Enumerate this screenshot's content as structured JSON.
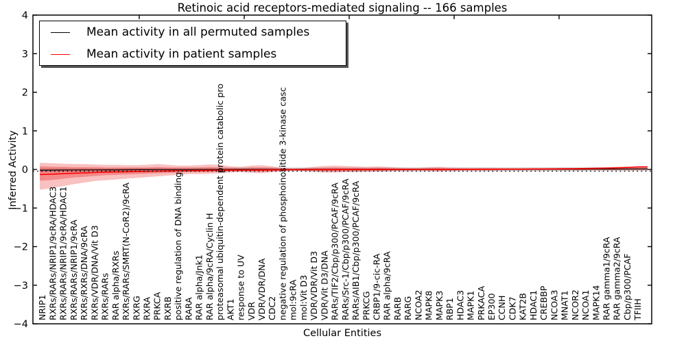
{
  "title": "Retinoic acid receptors-mediated signaling -- 166 samples",
  "legend": {
    "items": [
      {
        "label": "Mean activity in all permuted samples",
        "color": "#000000"
      },
      {
        "label": "Mean activity in patient samples",
        "color": "#ff0000"
      }
    ]
  },
  "axes": {
    "x_label": "Cellular Entities",
    "y_label": "Inferred Activity",
    "y_tick_labels": [
      "4",
      "3",
      "2",
      "1",
      "0",
      "−1",
      "−2",
      "−3",
      "−4"
    ],
    "y_tick_values": [
      4,
      3,
      2,
      1,
      0,
      -1,
      -2,
      -3,
      -4
    ]
  },
  "colors": {
    "permuted_line": "#000000",
    "patient_line": "#ff0000",
    "band_outer": "rgba(235,50,50,0.30)",
    "band_inner": "rgba(235,50,50,0.38)",
    "permuted_band": "rgba(120,120,120,0.35)",
    "zero_line": "#000000",
    "spine": "#000000"
  },
  "chart_data": {
    "type": "line",
    "title": "Retinoic acid receptors-mediated signaling -- 166 samples",
    "xlabel": "Cellular Entities",
    "ylabel": "Inferred Activity",
    "ylim": [
      -4,
      4
    ],
    "grid": false,
    "legend_position": "upper left",
    "categories": [
      "NRIP1",
      "RXRs/RARs/NRIP1/9cRA/HDAC3",
      "RXRs/RARs/NRIP1/9cRA/HDAC1",
      "RXRs/RARs/NRIP1/9cRA",
      "RXRs/RXRs/DNA/9cRA",
      "RXRs/VDR/DNA/Vit D3",
      "RXRs/RARs",
      "RAR alpha/RXRs",
      "RXRs/RARs/SMRT(N-CoR2)/9cRA",
      "RXRG",
      "RXRA",
      "PRKCA",
      "RXRB",
      "positive regulation of DNA binding",
      "RARA",
      "RAR alpha/Jnk1",
      "RAR alpha/9cRA/Cyclin H",
      "proteasomal ubiquitin-dependent protein catabolic pro",
      "AKT1",
      "response to UV",
      "VDR",
      "VDR/VDR/DNA",
      "CDC2",
      "negative regulation of phosphoinositide 3-kinase casc",
      "mol:9cRA",
      "mol:Vit D3",
      "VDR/VDR/Vit D3",
      "VDR/Vit D3/DNA",
      "RARs/TIF2/Cbp/p300/PCAF/9cRA",
      "RARs/Src-1/Cbp/p300/PCAF/9cRA",
      "RARs/AIB1/Cbp/p300/PCAF/9cRA",
      "PRKCG",
      "CRBP1/9-cic-RA",
      "RAR alpha/9cRA",
      "RARB",
      "RARG",
      "NCOA2",
      "MAPK8",
      "MAPK3",
      "RBP1",
      "HDAC3",
      "MAPK1",
      "PRKACA",
      "EP300",
      "CCNH",
      "CDK7",
      "KAT2B",
      "HDAC1",
      "CREBBP",
      "NCOA3",
      "MNAT1",
      "NCOR2",
      "NCOA1",
      "MAPK14",
      "RAR gamma1/9cRA",
      "RAR gamma2/9cRA",
      "Cbp/p300/PCAF",
      "TFIIH"
    ],
    "series": [
      {
        "name": "Mean activity in all permuted samples",
        "values": [
          -0.02,
          -0.018,
          -0.016,
          -0.015,
          -0.013,
          -0.012,
          -0.011,
          -0.01,
          -0.009,
          -0.008,
          -0.007,
          -0.006,
          -0.006,
          -0.005,
          -0.005,
          -0.004,
          -0.004,
          -0.003,
          -0.003,
          -0.002,
          -0.002,
          -0.002,
          -0.001,
          -0.001,
          -0.001,
          0,
          0,
          0,
          0,
          0,
          0,
          0,
          0.001,
          0.001,
          0.001,
          0.001,
          0.002,
          0.002,
          0.002,
          0.002,
          0.003,
          0.003,
          0.003,
          0.004,
          0.004,
          0.004,
          0.005,
          0.005,
          0.006,
          0.006,
          0.007,
          0.008,
          0.009,
          0.01,
          0.011,
          0.012,
          0.013,
          0.015
        ]
      },
      {
        "name": "Mean activity in patient samples",
        "values": [
          -0.13,
          -0.12,
          -0.11,
          -0.1,
          -0.09,
          -0.08,
          -0.07,
          -0.065,
          -0.06,
          -0.055,
          -0.05,
          -0.045,
          -0.04,
          -0.035,
          -0.03,
          -0.028,
          -0.025,
          -0.022,
          -0.02,
          -0.018,
          -0.016,
          -0.015,
          -0.013,
          -0.01,
          -0.008,
          -0.007,
          -0.006,
          -0.005,
          -0.005,
          -0.004,
          -0.004,
          -0.003,
          -0.003,
          -0.002,
          -0.002,
          -0.001,
          0,
          0,
          0.001,
          0.002,
          0.003,
          0.004,
          0.005,
          0.006,
          0.007,
          0.008,
          0.009,
          0.01,
          0.012,
          0.014,
          0.016,
          0.02,
          0.024,
          0.028,
          0.034,
          0.042,
          0.052,
          0.065
        ]
      }
    ],
    "patient_band_outer_upper": [
      0.17,
      0.16,
      0.15,
      0.14,
      0.14,
      0.13,
      0.12,
      0.12,
      0.11,
      0.11,
      0.12,
      0.14,
      0.12,
      0.1,
      0.1,
      0.11,
      0.13,
      0.12,
      0.08,
      0.07,
      0.1,
      0.11,
      0.08,
      0.04,
      0.03,
      0.04,
      0.07,
      0.09,
      0.1,
      0.09,
      0.08,
      0.07,
      0.08,
      0.07,
      0.05,
      0.04,
      0.04,
      0.06,
      0.07,
      0.05,
      0.04,
      0.04,
      0.04,
      0.04,
      0.03,
      0.03,
      0.03,
      0.03,
      0.03,
      0.03,
      0.04,
      0.04,
      0.04,
      0.05,
      0.05,
      0.06,
      0.06,
      0.07
    ],
    "patient_band_outer_lower": [
      -0.52,
      -0.48,
      -0.43,
      -0.38,
      -0.34,
      -0.3,
      -0.28,
      -0.26,
      -0.24,
      -0.22,
      -0.2,
      -0.18,
      -0.16,
      -0.14,
      -0.12,
      -0.12,
      -0.11,
      -0.1,
      -0.08,
      -0.07,
      -0.09,
      -0.1,
      -0.07,
      -0.04,
      -0.03,
      -0.04,
      -0.06,
      -0.08,
      -0.08,
      -0.07,
      -0.07,
      -0.06,
      -0.06,
      -0.05,
      -0.04,
      -0.04,
      -0.03,
      -0.04,
      -0.05,
      -0.04,
      -0.03,
      -0.03,
      -0.03,
      -0.03,
      -0.02,
      -0.02,
      -0.02,
      -0.02,
      -0.02,
      -0.02,
      -0.02,
      -0.02,
      -0.02,
      -0.02,
      -0.02,
      -0.02,
      -0.02,
      -0.02
    ],
    "patient_band_inner_upper": [
      0.08,
      0.07,
      0.07,
      0.06,
      0.06,
      0.06,
      0.05,
      0.05,
      0.05,
      0.05,
      0.05,
      0.06,
      0.05,
      0.05,
      0.05,
      0.05,
      0.06,
      0.05,
      0.04,
      0.03,
      0.05,
      0.05,
      0.04,
      0.02,
      0.015,
      0.02,
      0.03,
      0.04,
      0.05,
      0.04,
      0.04,
      0.03,
      0.04,
      0.03,
      0.02,
      0.02,
      0.02,
      0.03,
      0.03,
      0.02,
      0.02,
      0.02,
      0.02,
      0.02,
      0.015,
      0.015,
      0.015,
      0.015,
      0.015,
      0.015,
      0.02,
      0.02,
      0.02,
      0.025,
      0.025,
      0.03,
      0.03,
      0.035
    ],
    "patient_band_inner_lower": [
      -0.29,
      -0.27,
      -0.24,
      -0.21,
      -0.19,
      -0.17,
      -0.15,
      -0.14,
      -0.13,
      -0.12,
      -0.11,
      -0.1,
      -0.09,
      -0.08,
      -0.07,
      -0.07,
      -0.06,
      -0.055,
      -0.045,
      -0.04,
      -0.05,
      -0.055,
      -0.04,
      -0.022,
      -0.017,
      -0.022,
      -0.033,
      -0.044,
      -0.044,
      -0.039,
      -0.039,
      -0.033,
      -0.033,
      -0.028,
      -0.022,
      -0.022,
      -0.017,
      -0.022,
      -0.028,
      -0.022,
      -0.017,
      -0.017,
      -0.017,
      -0.017,
      -0.011,
      -0.011,
      -0.011,
      -0.011,
      -0.011,
      -0.011,
      -0.011,
      -0.011,
      -0.011,
      -0.011,
      -0.011,
      -0.011,
      -0.011,
      -0.011
    ],
    "permuted_band_halfwidth": 0.05,
    "zero_reference": 0
  }
}
